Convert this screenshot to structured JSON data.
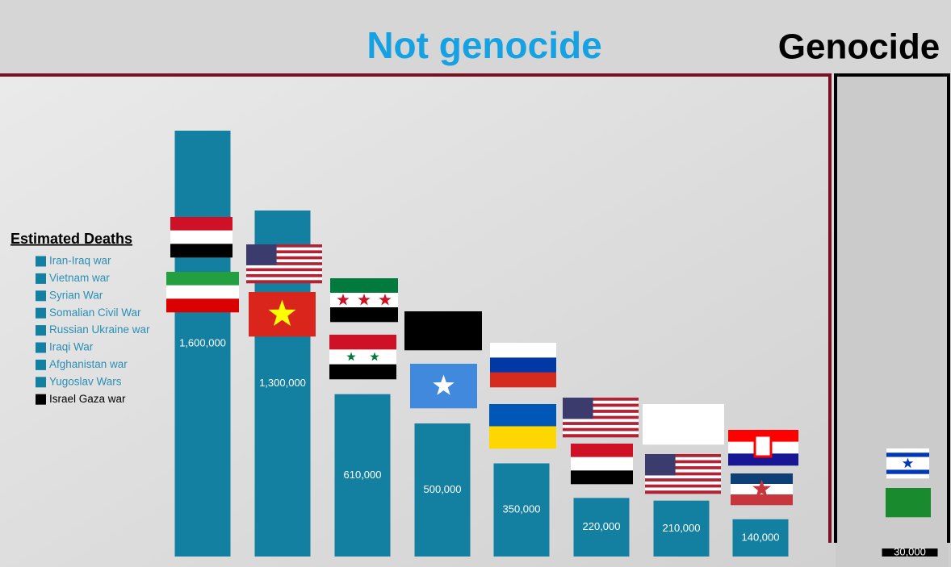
{
  "chart_data": {
    "type": "bar",
    "annotations": [
      "Not genocide",
      "Genocide"
    ],
    "legend_title": "Estimated Deaths",
    "categories": [
      "Iran-Iraq war",
      "Vietnam war",
      "Syrian War",
      "Somalian Civil War",
      "Russian Ukraine war",
      "Iraqi War",
      "Afghanistan war",
      "Yugoslav Wars",
      "Israel Gaza war"
    ],
    "values": [
      1600000,
      1300000,
      610000,
      500000,
      350000,
      220000,
      210000,
      140000,
      30000
    ],
    "value_labels": [
      "1,600,000",
      "1,300,000",
      "610,000",
      "500,000",
      "350,000",
      "220,000",
      "210,000",
      "140,000",
      "30,000"
    ],
    "colors": [
      "#1380a1",
      "#1380a1",
      "#1380a1",
      "#1380a1",
      "#1380a1",
      "#1380a1",
      "#1380a1",
      "#1380a1",
      "#000000"
    ]
  }
}
